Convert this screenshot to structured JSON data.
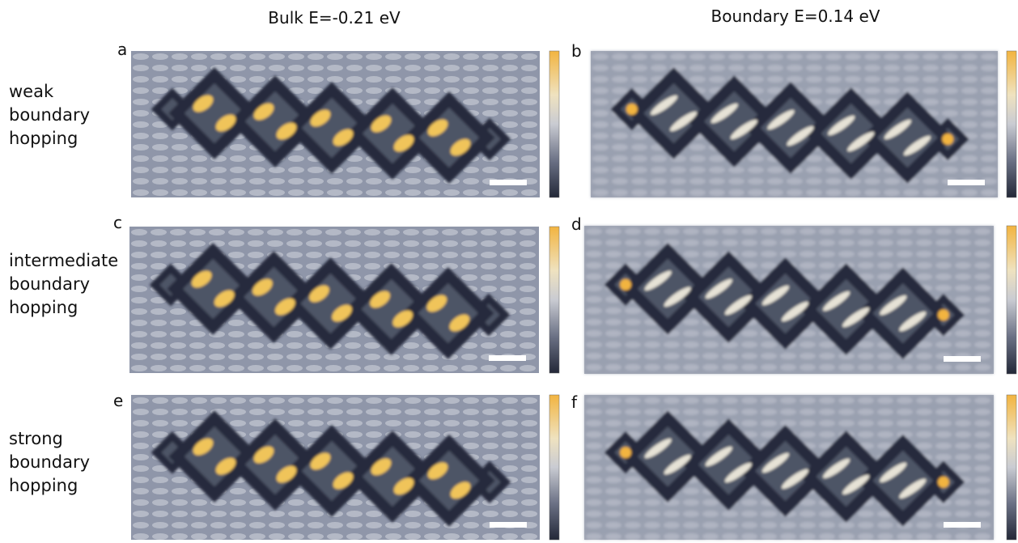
{
  "columns": [
    {
      "title": "Bulk E=-0.21 eV"
    },
    {
      "title": "Boundary E=0.14 eV"
    }
  ],
  "rows": [
    {
      "label": [
        "weak",
        "boundary",
        "hopping"
      ]
    },
    {
      "label": [
        "intermediate",
        "boundary",
        "hopping"
      ]
    },
    {
      "label": [
        "strong",
        "boundary",
        "hopping"
      ]
    }
  ],
  "panels": [
    {
      "letter": "a"
    },
    {
      "letter": "b"
    },
    {
      "letter": "c"
    },
    {
      "letter": "d"
    },
    {
      "letter": "e"
    },
    {
      "letter": "f"
    }
  ]
}
